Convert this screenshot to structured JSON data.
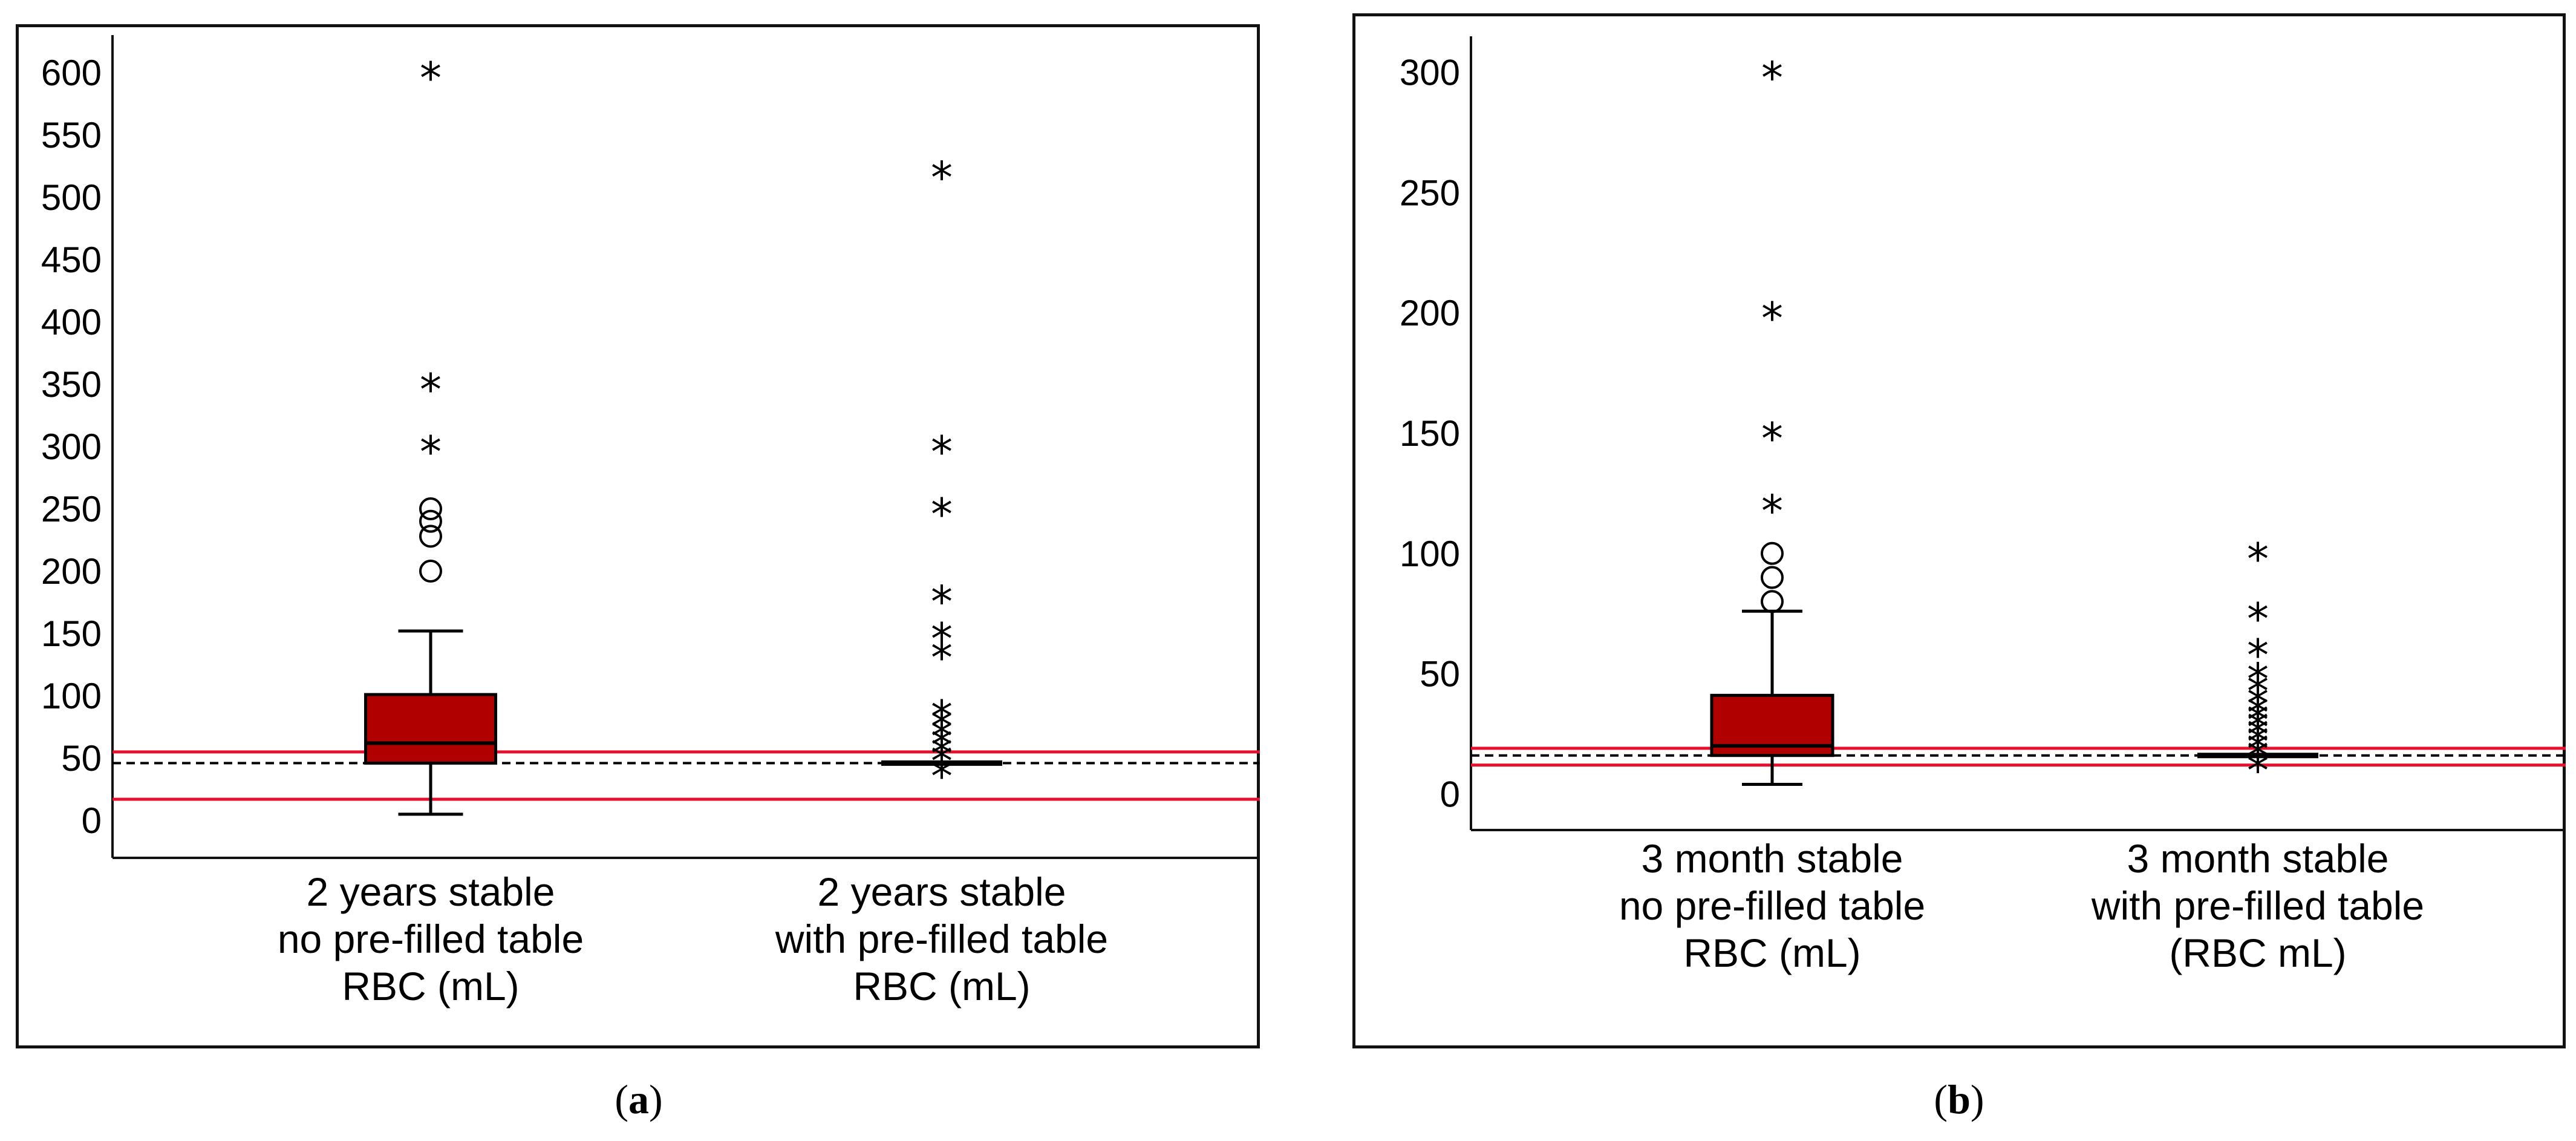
{
  "chart_data": [
    {
      "type": "box",
      "panel_label": "a",
      "ylim": [
        -30,
        630
      ],
      "yticks": [
        0,
        50,
        100,
        150,
        200,
        250,
        300,
        350,
        400,
        450,
        500,
        550,
        600
      ],
      "reference_lines": {
        "upper_red": 55,
        "lower_red": 17,
        "dashed": 46
      },
      "colors": {
        "box_fill": "#b00000",
        "red_line": "#e8112d",
        "dashed_line": "#000000"
      },
      "boxes": [
        {
          "label_lines": [
            "2 years stable",
            "no pre-filled table",
            "RBC (mL)"
          ],
          "whisker_low": 5,
          "q1": 46,
          "median": 62,
          "q3": 101,
          "whisker_high": 152,
          "filled": true,
          "outliers_circle": [
            200,
            228,
            240,
            250
          ],
          "outliers_star": [
            300,
            350,
            600
          ]
        },
        {
          "label_lines": [
            "2 years stable",
            "with pre-filled table",
            "RBC (mL)"
          ],
          "whisker_low": 46,
          "q1": 46,
          "median": 46,
          "q3": 46,
          "whisker_high": 46,
          "filled": false,
          "outliers_circle": [],
          "outliers_star": [
            40,
            52,
            58,
            65,
            72,
            80,
            88,
            135,
            150,
            180,
            250,
            300,
            520
          ]
        }
      ]
    },
    {
      "type": "box",
      "panel_label": "b",
      "ylim": [
        -15,
        315
      ],
      "yticks": [
        0,
        50,
        100,
        150,
        200,
        250,
        300
      ],
      "reference_lines": {
        "upper_red": 19,
        "lower_red": 12,
        "dashed": 16
      },
      "colors": {
        "box_fill": "#b00000",
        "red_line": "#e8112d",
        "dashed_line": "#000000"
      },
      "boxes": [
        {
          "label_lines": [
            "3 month stable",
            "no pre-filled table",
            "RBC (mL)"
          ],
          "whisker_low": 4,
          "q1": 16,
          "median": 20,
          "q3": 41,
          "whisker_high": 76,
          "filled": true,
          "outliers_circle": [
            80,
            90,
            100
          ],
          "outliers_star": [
            120,
            150,
            200,
            300
          ]
        },
        {
          "label_lines": [
            "3 month stable",
            "with pre-filled table",
            "(RBC mL)"
          ],
          "whisker_low": 16,
          "q1": 16,
          "median": 16,
          "q3": 16,
          "whisker_high": 16,
          "filled": false,
          "outliers_circle": [],
          "outliers_star": [
            12,
            18,
            21,
            24,
            27,
            30,
            33,
            36,
            40,
            45,
            50,
            60,
            75,
            100
          ]
        }
      ]
    }
  ]
}
